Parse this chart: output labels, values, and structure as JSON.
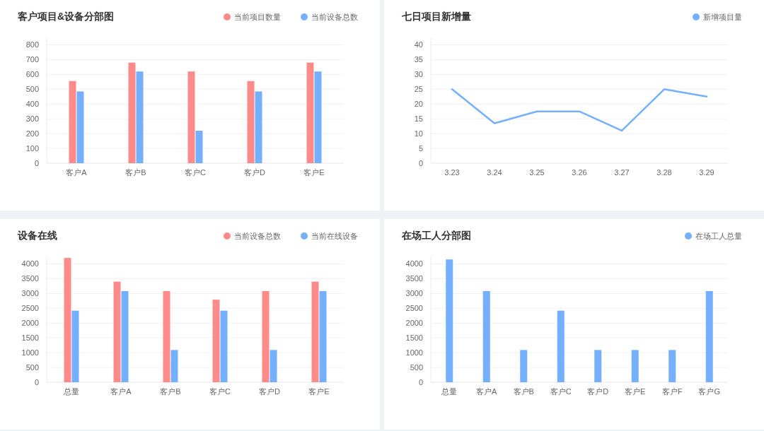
{
  "chart_data": [
    {
      "type": "bar",
      "title": "客户项目&设备分部图",
      "categories": [
        "客户A",
        "客户B",
        "客户C",
        "客户D",
        "客户E"
      ],
      "series": [
        {
          "name": "当前项目数量",
          "color": "#ff8a8a",
          "values": [
            555,
            680,
            620,
            555,
            680
          ]
        },
        {
          "name": "当前设备总数",
          "color": "#74b0ff",
          "values": [
            485,
            620,
            220,
            485,
            620
          ]
        }
      ],
      "ylim": [
        0,
        850
      ],
      "yticks": [
        0,
        100,
        200,
        300,
        400,
        500,
        600,
        700,
        800
      ],
      "grid": "y",
      "legend": "top right"
    },
    {
      "type": "line",
      "title": "七日项目新增量",
      "categories": [
        "3.23",
        "3.24",
        "3.25",
        "3.26",
        "3.27",
        "3.28",
        "3.29"
      ],
      "series": [
        {
          "name": "新增项目量",
          "color": "#74b0ff",
          "values": [
            25,
            13.5,
            17.5,
            17.5,
            11,
            25,
            22.5
          ]
        }
      ],
      "ylim": [
        0,
        42.5
      ],
      "yticks": [
        0,
        5,
        10,
        15,
        20,
        25,
        30,
        35,
        40
      ],
      "grid": "y",
      "legend": "top right"
    },
    {
      "type": "bar",
      "title": "设备在线",
      "categories": [
        "总量",
        "客户A",
        "客户B",
        "客户C",
        "客户D",
        "客户E"
      ],
      "series": [
        {
          "name": "当前设备总数",
          "color": "#ff8a8a",
          "values": [
            4200,
            3400,
            3080,
            2790,
            3080,
            3400
          ]
        },
        {
          "name": "当前在线设备",
          "color": "#74b0ff",
          "values": [
            2420,
            3080,
            1090,
            2420,
            1090,
            3080
          ]
        }
      ],
      "ylim": [
        0,
        4250
      ],
      "yticks": [
        0,
        500,
        1000,
        1500,
        2000,
        2500,
        3000,
        3500,
        4000
      ],
      "grid": "y",
      "legend": "top right"
    },
    {
      "type": "bar",
      "title": "在场工人分部图",
      "categories": [
        "总量",
        "客户A",
        "客户B",
        "客户C",
        "客户D",
        "客户E",
        "客户F",
        "客户G"
      ],
      "series": [
        {
          "name": "在场工人总量",
          "color": "#74b0ff",
          "values": [
            4150,
            3080,
            1090,
            2420,
            1090,
            1090,
            1090,
            3080
          ]
        }
      ],
      "ylim": [
        0,
        4250
      ],
      "yticks": [
        0,
        500,
        1000,
        1500,
        2000,
        2500,
        3000,
        3500,
        4000
      ],
      "grid": "y",
      "legend": "top right"
    }
  ]
}
